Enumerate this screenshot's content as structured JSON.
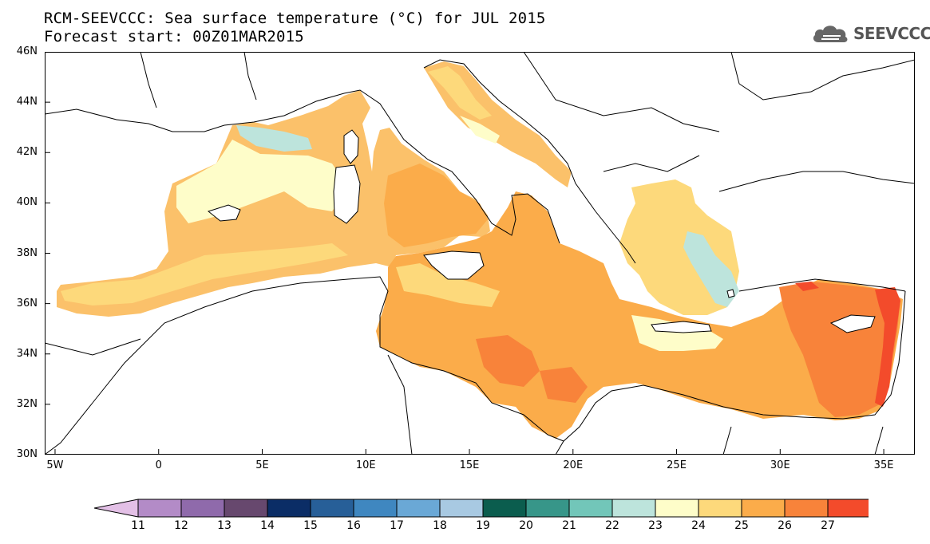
{
  "header": {
    "title_line1": "RCM-SEEVCCC: Sea surface temperature (°C) for JUL 2015",
    "title_line2": "Forecast start: 00Z01MAR2015"
  },
  "logo": {
    "text": "SEEVCCC",
    "icon": "cloud-logo-icon"
  },
  "map": {
    "type": "filled-contour-map",
    "region": "Mediterranean Sea",
    "lat_range": [
      30,
      46
    ],
    "lon_range": [
      -5.5,
      36.5
    ],
    "y_tick_labels": [
      "46N",
      "44N",
      "42N",
      "40N",
      "38N",
      "36N",
      "34N",
      "32N",
      "30N"
    ],
    "x_tick_labels": [
      "5W",
      "0",
      "5E",
      "10E",
      "15E",
      "20E",
      "25E",
      "30E",
      "35E"
    ],
    "colors": {
      "land": "#ffffff",
      "border": "#000000",
      "sea_default": "#fbc16a"
    }
  },
  "colorbar": {
    "labels": [
      "11",
      "12",
      "13",
      "14",
      "15",
      "16",
      "17",
      "18",
      "19",
      "20",
      "21",
      "22",
      "23",
      "24",
      "25",
      "26",
      "27"
    ],
    "colors": [
      "#e3c0e6",
      "#b38bc7",
      "#8f6aab",
      "#67486e",
      "#0b2d66",
      "#275f98",
      "#3f87c0",
      "#6aa8d6",
      "#a8c9e2",
      "#0b5d4e",
      "#379689",
      "#72c6b9",
      "#bde4dc",
      "#fefdc9",
      "#fdd97b",
      "#fbac4a",
      "#f8833a",
      "#f34b2b",
      "#d9161c"
    ]
  }
}
